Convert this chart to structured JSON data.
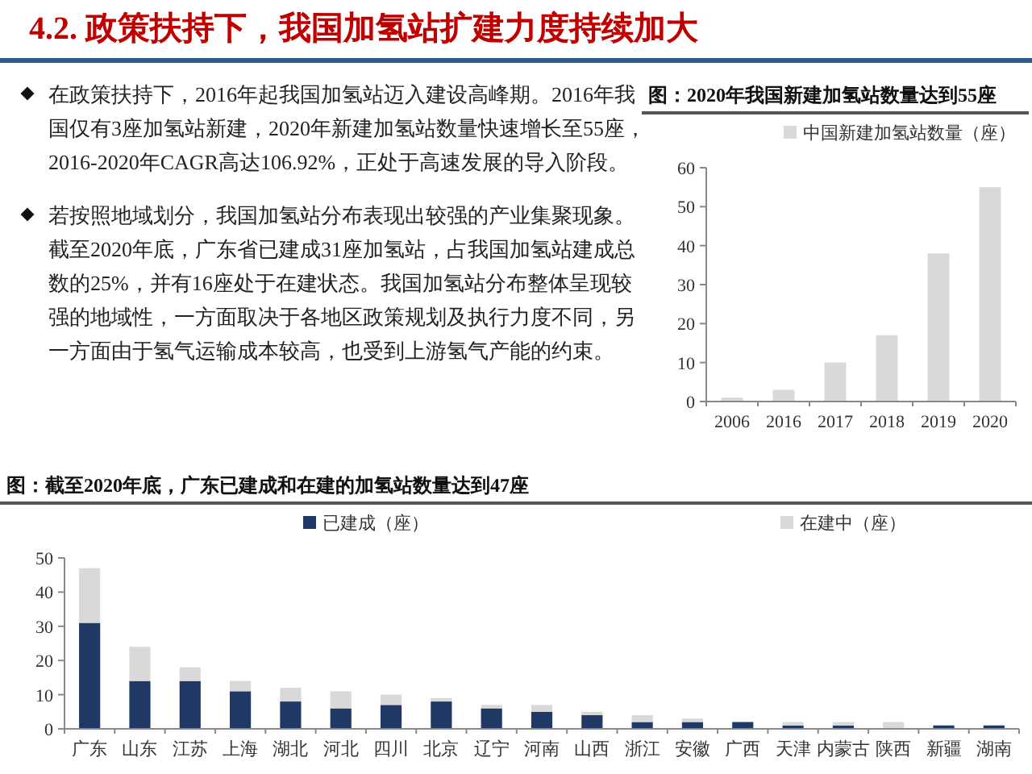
{
  "chart_data": [
    {
      "type": "other",
      "title": "4.2. 政策扶持下，我国加氢站扩建力度持续加大",
      "annotations": [
        "在政策扶持下，2016年起我国加氢站迈入建设高峰期。2016年我国仅有3座加氢站新建，2020年新建加氢站数量快速增长至55座，2016-2020年CAGR高达106.92%，正处于高速发展的导入阶段。",
        "若按照地域划分，我国加氢站分布表现出较强的产业集聚现象。截至2020年底，广东省已建成31座加氢站，占我国加氢站建成总数的25%，并有16座处于在建状态。我国加氢站分布整体呈现较强的地域性，一方面取决于各地区政策规划及执行力度不同，另一方面由于氢气运输成本较高，也受到上游氢气产能的约束。"
      ]
    },
    {
      "type": "bar",
      "title": "图：2020年我国新建加氢站数量达到55座",
      "categories": [
        "2006",
        "2016",
        "2017",
        "2018",
        "2019",
        "2020"
      ],
      "legend": "top",
      "ylim": [
        0,
        60
      ],
      "yticks": [
        0,
        10,
        20,
        30,
        40,
        50,
        60
      ],
      "series": [
        {
          "name": "中国新建加氢站数量（座）",
          "color": "#d9d9d9",
          "values": [
            1,
            3,
            10,
            17,
            38,
            55
          ]
        }
      ]
    },
    {
      "type": "bar",
      "title": "图：截至2020年底，广东已建成和在建的加氢站数量达到47座",
      "categories": [
        "广东",
        "山东",
        "江苏",
        "上海",
        "湖北",
        "河北",
        "四川",
        "北京",
        "辽宁",
        "河南",
        "山西",
        "浙江",
        "安徽",
        "广西",
        "天津",
        "内蒙古",
        "陕西",
        "新疆",
        "湖南"
      ],
      "stacked": true,
      "legend": "top",
      "ylim": [
        0,
        50
      ],
      "yticks": [
        0,
        10,
        20,
        30,
        40,
        50
      ],
      "series": [
        {
          "name": "已建成（座）",
          "color": "#1f3864",
          "values": [
            31,
            14,
            14,
            11,
            8,
            6,
            7,
            8,
            6,
            5,
            4,
            2,
            2,
            2,
            1,
            1,
            0,
            1,
            1
          ]
        },
        {
          "name": "在建中（座）",
          "color": "#d9d9d9",
          "values": [
            16,
            10,
            4,
            3,
            4,
            5,
            3,
            1,
            1,
            2,
            1,
            2,
            1,
            0,
            1,
            1,
            2,
            0,
            0
          ]
        }
      ]
    }
  ]
}
